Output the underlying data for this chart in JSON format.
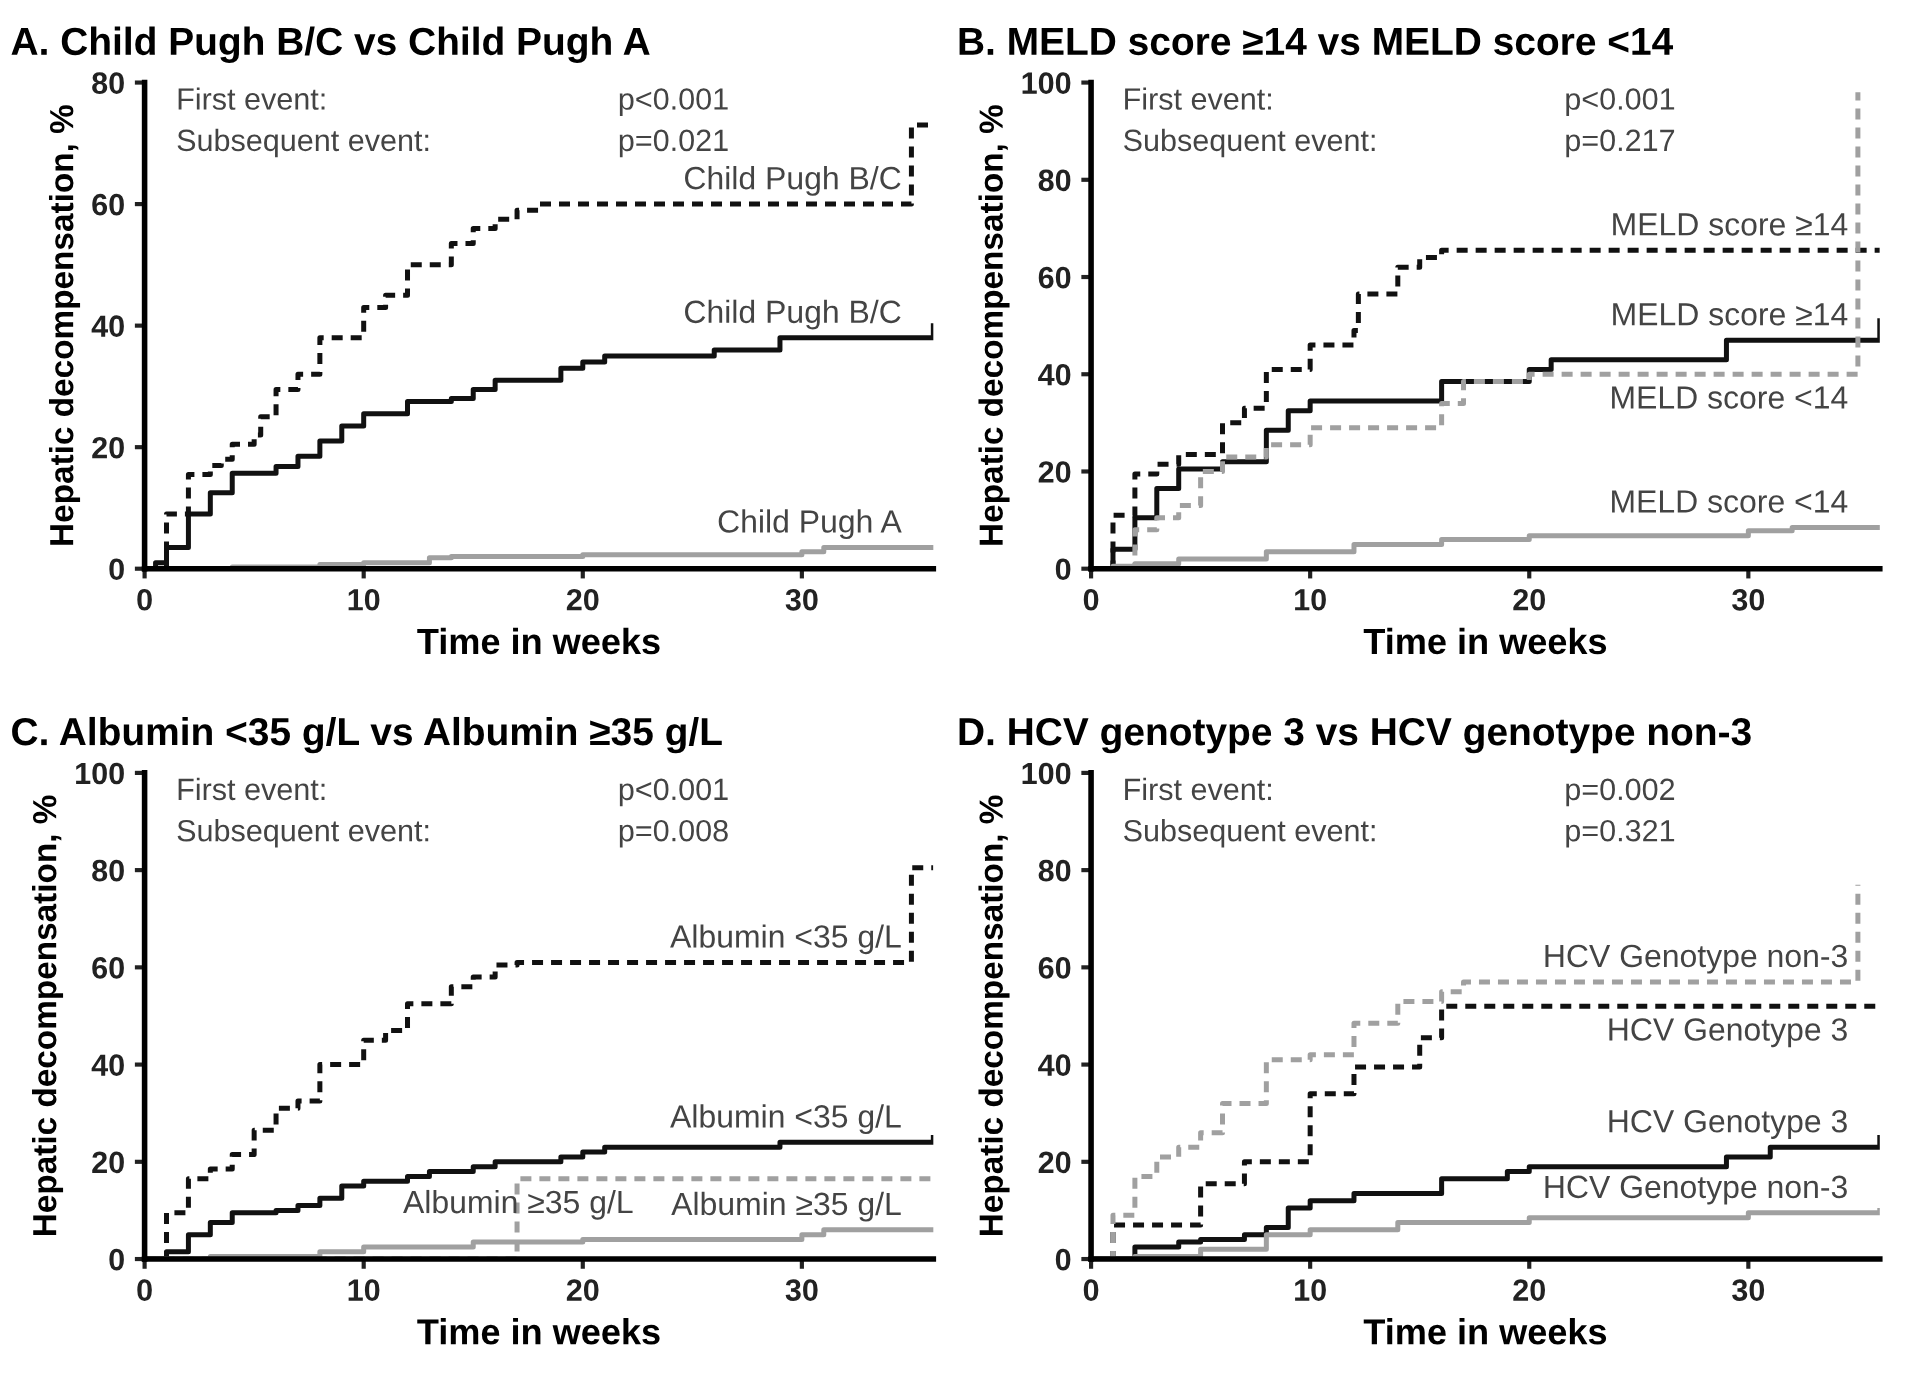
{
  "chart_data": [
    {
      "type": "step",
      "title": "A. Child Pugh B/C vs Child Pugh A",
      "xlabel": "Time in weeks",
      "ylabel": "Hepatic decompensation, %",
      "xlim": [
        0,
        36
      ],
      "xticks": [
        0,
        10,
        20,
        30
      ],
      "ylim": [
        0,
        80
      ],
      "yticks": [
        0,
        20,
        40,
        60,
        80
      ],
      "annotations": [
        "First event:",
        "p<0.001",
        "Subsequent event:",
        "p=0.021"
      ],
      "series": [
        {
          "name": "Child Pugh B/C",
          "color": "#111111",
          "line_style": "solid",
          "x": [
            0,
            0.5,
            1,
            2,
            3,
            4,
            6,
            7,
            8,
            9,
            10,
            12,
            14,
            15,
            16,
            19,
            20,
            21,
            26,
            29,
            36
          ],
          "values": [
            0,
            1,
            3.5,
            9,
            12.5,
            15.7,
            16.8,
            18.5,
            21,
            23.5,
            25.5,
            27.5,
            28,
            29.5,
            31,
            33,
            34,
            35,
            36,
            38,
            40
          ]
        },
        {
          "name": "Child Pugh B/C",
          "color": "#111111",
          "line_style": "dashed",
          "x": [
            0,
            1,
            2,
            3,
            3.5,
            4,
            5,
            5.3,
            6,
            7,
            8,
            10,
            11,
            12,
            14,
            15,
            16,
            17,
            18,
            35,
            36
          ],
          "values": [
            0,
            9,
            15.5,
            17,
            18,
            20.5,
            22,
            25,
            29.5,
            32,
            38,
            43,
            45,
            50,
            53.5,
            56,
            57.5,
            59,
            60,
            73,
            73
          ]
        },
        {
          "name": "Child Pugh A",
          "color": "#a0a0a0",
          "line_style": "solid",
          "x": [
            0,
            4,
            8,
            10,
            13,
            14,
            20,
            30,
            31,
            36
          ],
          "values": [
            0,
            0.3,
            0.7,
            1,
            1.8,
            2,
            2.3,
            2.8,
            3.5,
            3.5
          ]
        }
      ]
    },
    {
      "type": "step",
      "title": "B. MELD score ≥14 vs MELD score <14",
      "xlabel": "Time in weeks",
      "ylabel": "Hepatic decompensation, %",
      "xlim": [
        0,
        36
      ],
      "xticks": [
        0,
        10,
        20,
        30
      ],
      "ylim": [
        0,
        100
      ],
      "yticks": [
        0,
        20,
        40,
        60,
        80,
        100
      ],
      "annotations": [
        "First event:",
        "p<0.001",
        "Subsequent event:",
        "p=0.217"
      ],
      "series": [
        {
          "name": "MELD score ≥14",
          "color": "#111111",
          "line_style": "solid",
          "x": [
            0,
            1,
            2,
            3,
            4,
            6,
            8,
            9,
            10,
            16,
            20,
            21,
            29,
            36
          ],
          "values": [
            0,
            4,
            10.5,
            16.5,
            20.5,
            22,
            28.5,
            32.5,
            34.5,
            38.5,
            41,
            43,
            47,
            51
          ]
        },
        {
          "name": "MELD score ≥14",
          "color": "#111111",
          "line_style": "dashed",
          "x": [
            0,
            1,
            2,
            3,
            4,
            6,
            7,
            8,
            10,
            12,
            12.2,
            14,
            15,
            16,
            36
          ],
          "values": [
            0,
            11,
            19.5,
            21.5,
            23.5,
            30,
            33,
            41,
            46,
            49,
            56.5,
            62,
            64,
            65.5,
            65.5
          ]
        },
        {
          "name": "MELD score <14",
          "color": "#a0a0a0",
          "line_style": "solid",
          "x": [
            0,
            1,
            2,
            4,
            8,
            12,
            16,
            20,
            30,
            32,
            36
          ],
          "values": [
            0,
            0.5,
            1,
            2,
            3.5,
            5,
            6,
            6.8,
            7.8,
            8.5,
            8.5
          ]
        },
        {
          "name": "MELD score <14",
          "color": "#a0a0a0",
          "line_style": "dashed",
          "x": [
            0,
            2,
            3,
            4,
            5,
            6,
            8,
            10,
            16,
            17,
            20,
            35
          ],
          "values": [
            0,
            8,
            10.5,
            13,
            20,
            23,
            25.5,
            29,
            34,
            38.5,
            40,
            98
          ]
        }
      ]
    },
    {
      "type": "step",
      "title": "C. Albumin <35 g/L vs Albumin ≥35 g/L",
      "xlabel": "Time in weeks",
      "ylabel": "Hepatic decompensation, %",
      "xlim": [
        0,
        36
      ],
      "xticks": [
        0,
        10,
        20,
        30
      ],
      "ylim": [
        0,
        100
      ],
      "yticks": [
        0,
        20,
        40,
        60,
        80,
        100
      ],
      "annotations": [
        "First event:",
        "p<0.001",
        "Subsequent event:",
        "p=0.008"
      ],
      "series": [
        {
          "name": "Albumin <35 g/L",
          "color": "#111111",
          "line_style": "solid",
          "x": [
            0,
            1,
            2,
            3,
            4,
            6,
            7,
            8,
            9,
            10,
            12,
            13,
            15,
            16,
            19,
            20,
            21,
            29,
            36
          ],
          "values": [
            0,
            1.5,
            5,
            7.5,
            9.5,
            10,
            11,
            12.5,
            15,
            16,
            17,
            18,
            19,
            20,
            21,
            22,
            23,
            24,
            25
          ]
        },
        {
          "name": "Albumin <35 g/L",
          "color": "#111111",
          "line_style": "dashed",
          "x": [
            0,
            1,
            2,
            3,
            4,
            5,
            6,
            7,
            8,
            10,
            11,
            12,
            14,
            15,
            16,
            17,
            35,
            36
          ],
          "values": [
            0,
            9.5,
            16.5,
            18.5,
            21.5,
            26.5,
            31,
            32.5,
            40,
            45,
            47,
            52.5,
            56,
            58,
            60.5,
            61,
            80.5,
            80.5
          ]
        },
        {
          "name": "Albumin ≥35 g/L",
          "color": "#a0a0a0",
          "line_style": "solid",
          "x": [
            0,
            3,
            8,
            10,
            15,
            20,
            30,
            31,
            36
          ],
          "values": [
            0,
            0.5,
            1.5,
            2.5,
            3.5,
            4,
            5,
            6,
            6
          ]
        },
        {
          "name": "Albumin ≥35 g/L",
          "color": "#a0a0a0",
          "line_style": "dashed",
          "x": [
            0,
            17,
            36
          ],
          "values": [
            0,
            16.5,
            16.5
          ]
        }
      ]
    },
    {
      "type": "step",
      "title": "D. HCV genotype 3 vs HCV genotype non-3",
      "xlabel": "Time in weeks",
      "ylabel": "Hepatic decompensation, %",
      "xlim": [
        0,
        36
      ],
      "xticks": [
        0,
        10,
        20,
        30
      ],
      "ylim": [
        0,
        100
      ],
      "yticks": [
        0,
        20,
        40,
        60,
        80,
        100
      ],
      "annotations": [
        "First event:",
        "p=0.002",
        "Subsequent event:",
        "p=0.321"
      ],
      "series": [
        {
          "name": "HCV Genotype 3",
          "color": "#111111",
          "line_style": "solid",
          "x": [
            0,
            2,
            4,
            5,
            7,
            8,
            9,
            10,
            12,
            16,
            19,
            20,
            29,
            31,
            36
          ],
          "values": [
            0,
            2.5,
            3.5,
            4,
            5,
            6.5,
            10.5,
            12,
            13.5,
            16.5,
            18,
            19,
            21,
            23,
            25
          ]
        },
        {
          "name": "HCV Genotype 3",
          "color": "#111111",
          "line_style": "dashed",
          "x": [
            0,
            1,
            5,
            7,
            10,
            12,
            15,
            16,
            36
          ],
          "values": [
            0,
            7,
            15.5,
            20,
            34,
            39.5,
            45.5,
            52,
            52
          ]
        },
        {
          "name": "HCV Genotype non-3",
          "color": "#a0a0a0",
          "line_style": "solid",
          "x": [
            0,
            2,
            5,
            8,
            10,
            14,
            20,
            30,
            36
          ],
          "values": [
            0,
            0.5,
            2,
            5,
            6,
            7.5,
            8.5,
            9.5,
            10
          ]
        },
        {
          "name": "HCV Genotype non-3",
          "color": "#a0a0a0",
          "line_style": "dashed",
          "x": [
            0,
            1,
            2,
            3,
            4,
            5,
            6,
            8,
            10,
            12,
            14,
            16,
            17,
            35
          ],
          "values": [
            0,
            9,
            17,
            21,
            23,
            26,
            32,
            41,
            42,
            48.5,
            53,
            55,
            57,
            77
          ]
        }
      ]
    }
  ]
}
